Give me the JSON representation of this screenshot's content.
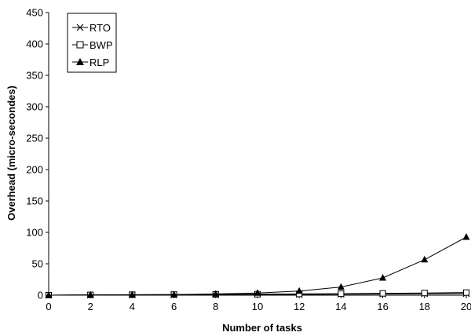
{
  "chart_data": {
    "type": "line",
    "title": "",
    "xlabel": "Number of tasks",
    "ylabel": "Overhead (micro-secondes)",
    "x": [
      0,
      2,
      4,
      6,
      8,
      10,
      12,
      14,
      16,
      18,
      20
    ],
    "xlim": [
      0,
      20
    ],
    "ylim": [
      0,
      450
    ],
    "xticks": [
      "0",
      "2",
      "4",
      "6",
      "8",
      "10",
      "12",
      "14",
      "16",
      "18",
      "20"
    ],
    "yticks": [
      "0",
      "50",
      "100",
      "150",
      "200",
      "250",
      "300",
      "350",
      "400",
      "450"
    ],
    "grid": false,
    "legend_position": "top-left",
    "series": [
      {
        "name": "RTO",
        "marker": "x",
        "values": [
          0,
          0.3,
          0.5,
          0.7,
          0.9,
          1.1,
          1.3,
          1.6,
          1.9,
          2.2,
          2.6
        ]
      },
      {
        "name": "BWP",
        "marker": "square",
        "values": [
          0,
          0.5,
          0.8,
          1.0,
          1.3,
          1.6,
          2.0,
          2.4,
          2.9,
          3.5,
          4.2
        ]
      },
      {
        "name": "RLP",
        "marker": "triangle",
        "values": [
          0,
          0.4,
          0.6,
          1.0,
          2.0,
          3.5,
          6.5,
          13.0,
          27.5,
          56.5,
          92.5
        ]
      }
    ]
  }
}
